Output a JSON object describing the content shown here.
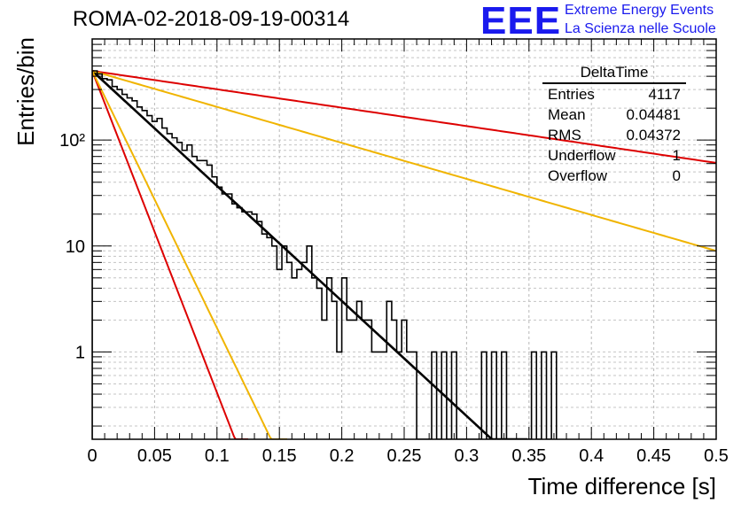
{
  "chart_data": {
    "type": "histogram",
    "title": "ROMA-02-2018-09-19-00314",
    "xlabel": "Time difference [s]",
    "ylabel": "Entries/bin",
    "xlim": [
      0,
      0.5
    ],
    "ylim": [
      0.15,
      900
    ],
    "y_scale": "log",
    "grid": true,
    "x_ticks": [
      "0",
      "0.05",
      "0.1",
      "0.15",
      "0.2",
      "0.25",
      "0.3",
      "0.35",
      "0.4",
      "0.45",
      "0.5"
    ],
    "y_ticks": [
      {
        "value": 1,
        "label": "1"
      },
      {
        "value": 10,
        "label": "10"
      },
      {
        "value": 100,
        "label": "10²"
      }
    ],
    "histogram": {
      "name": "DeltaTime",
      "bin_width": 0.004,
      "x_start": 0,
      "counts": [
        450,
        420,
        380,
        370,
        320,
        300,
        270,
        250,
        235,
        205,
        190,
        170,
        150,
        160,
        130,
        115,
        105,
        95,
        80,
        90,
        70,
        64,
        64,
        58,
        45,
        36,
        31,
        31,
        25,
        23,
        21,
        21,
        20,
        17,
        13,
        12,
        10,
        6,
        10,
        7,
        5,
        6,
        7,
        10,
        5,
        4,
        2,
        5,
        3,
        1,
        5,
        2,
        2,
        3,
        2,
        2,
        1,
        1,
        1,
        3,
        2,
        1,
        2,
        1,
        1,
        0,
        0,
        0,
        1,
        0,
        1,
        0,
        1,
        0,
        0,
        0,
        0,
        0,
        1,
        0,
        1,
        0,
        1,
        0,
        0,
        0,
        0,
        0,
        1,
        0,
        1,
        0,
        1
      ]
    },
    "fit_curves": [
      {
        "color": "#000000",
        "y0": 450,
        "tau": 0.04
      },
      {
        "color": "#dd0000",
        "y0": 450,
        "tau": 0.0143
      },
      {
        "color": "#f0b400",
        "y0": 450,
        "tau": 0.0179
      },
      {
        "color": "#dd0000",
        "y0": 450,
        "tau": 0.25
      },
      {
        "color": "#f0b400",
        "y0": 450,
        "tau": 0.1278
      }
    ],
    "stats": {
      "title": "DeltaTime",
      "rows": [
        {
          "label": "Entries",
          "value": "4117"
        },
        {
          "label": "Mean",
          "value": "0.04481"
        },
        {
          "label": "RMS",
          "value": "0.04372"
        },
        {
          "label": "Underflow",
          "value": "1"
        },
        {
          "label": "Overflow",
          "value": "0"
        }
      ]
    }
  },
  "logo": {
    "mark": "EEE",
    "line1": "Extreme Energy Events",
    "line2": "La Scienza nelle Scuole",
    "color": "#1a1aee"
  }
}
